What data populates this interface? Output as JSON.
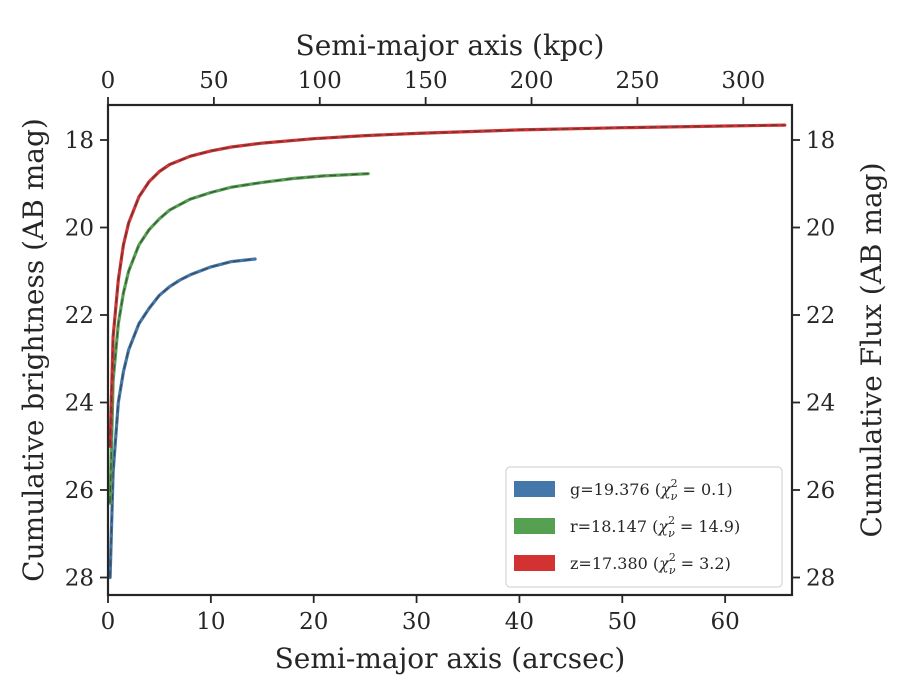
{
  "chart_data": {
    "type": "line",
    "xlabel": "Semi-major axis (arcsec)",
    "xlabel_top": "Semi-major axis (kpc)",
    "ylabel": "Cumulative brightness (AB mag)",
    "ylabel_right": "Cumulative Flux (AB mag)",
    "xlim": [
      0,
      66.5
    ],
    "ylim": [
      28.4,
      17.2
    ],
    "ylim_note": "y axis inverted (magnitudes)",
    "xlim_top": [
      0,
      323
    ],
    "x_ticks": [
      "0",
      "10",
      "20",
      "30",
      "40",
      "50",
      "60"
    ],
    "x_top_ticks": [
      "0",
      "50",
      "100",
      "150",
      "200",
      "250",
      "300"
    ],
    "y_ticks": [
      "18",
      "20",
      "22",
      "24",
      "26",
      "28"
    ],
    "y_right_ticks": [
      "18",
      "20",
      "22",
      "24",
      "26",
      "28"
    ],
    "legend_position": "lower-right",
    "series": [
      {
        "band": "g",
        "label": "g=19.376 (χ²ν = 0.1)",
        "label_main": "g=19.376 (",
        "label_chi": "χ",
        "label_sup": "2",
        "label_sub": "ν",
        "label_value": " = 0.1)",
        "color": "#4477aa",
        "x": [
          0.2,
          0.5,
          1,
          1.5,
          2,
          3,
          4,
          5,
          6,
          7,
          8,
          10,
          12,
          14.3
        ],
        "y": [
          28.0,
          25.6,
          24.0,
          23.3,
          22.8,
          22.2,
          21.85,
          21.55,
          21.35,
          21.2,
          21.08,
          20.9,
          20.78,
          20.72
        ]
      },
      {
        "band": "r",
        "label": "r=18.147 (χ²ν = 14.9)",
        "label_main": "r=18.147 (",
        "label_chi": "χ",
        "label_sup": "2",
        "label_sub": "ν",
        "label_value": " = 14.9)",
        "color": "#55a051",
        "x": [
          0.2,
          0.5,
          1,
          1.5,
          2,
          3,
          4,
          5,
          6,
          8,
          10,
          12,
          15,
          18,
          21,
          25.3
        ],
        "y": [
          26.3,
          23.5,
          22.2,
          21.5,
          21.0,
          20.4,
          20.05,
          19.8,
          19.6,
          19.35,
          19.2,
          19.08,
          18.97,
          18.88,
          18.82,
          18.77
        ]
      },
      {
        "band": "z",
        "label": "z=17.380 (χ²ν = 3.2)",
        "label_main": "z=17.380 (",
        "label_chi": "χ",
        "label_sup": "2",
        "label_sub": "ν",
        "label_value": " = 3.2)",
        "color": "#d23232",
        "x": [
          0.2,
          0.5,
          1,
          1.5,
          2,
          3,
          4,
          5,
          6,
          8,
          10,
          12,
          15,
          20,
          25,
          30,
          40,
          50,
          60,
          65.8
        ],
        "y": [
          25.0,
          22.5,
          21.2,
          20.4,
          19.9,
          19.3,
          18.95,
          18.72,
          18.56,
          18.37,
          18.25,
          18.16,
          18.07,
          17.97,
          17.9,
          17.85,
          17.77,
          17.72,
          17.68,
          17.66
        ]
      }
    ],
    "model_line_style": "dashed dark overlay on each series"
  }
}
